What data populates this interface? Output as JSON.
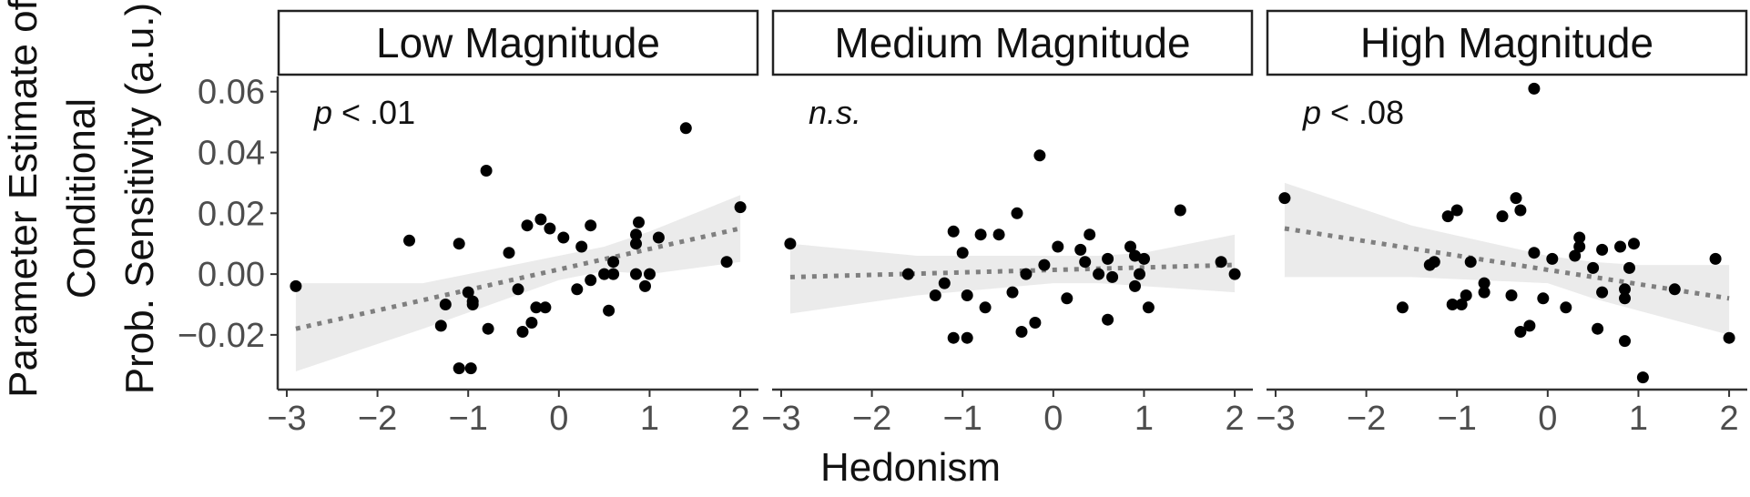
{
  "chart_data": {
    "type": "scatter",
    "xlabel": "Hedonism",
    "ylabel_lines": [
      "Parameter Estimate of",
      "Conditional",
      "Prob. Sensitivity (a.u.)"
    ],
    "xlim": [
      -3.1,
      2.2
    ],
    "ylim": [
      -0.038,
      0.065
    ],
    "x_ticks": [
      -3,
      -2,
      -1,
      0,
      1,
      2
    ],
    "x_tick_labels": [
      "−3",
      "−2",
      "−1",
      "0",
      "1",
      "2"
    ],
    "y_ticks": [
      -0.02,
      0.0,
      0.02,
      0.04,
      0.06
    ],
    "y_tick_labels": [
      "−0.02",
      "0.00",
      "0.02",
      "0.04",
      "0.06"
    ],
    "colors": {
      "point": "#000000",
      "fit_line": "#7f7f7f",
      "ribbon": "#ebebeb",
      "axis": "#333333"
    },
    "panels": [
      {
        "title": "Low Magnitude",
        "annotation_italic": "p",
        "annotation_rest": " < .01",
        "fit": {
          "x": [
            -2.9,
            2.0
          ],
          "y": [
            -0.018,
            0.015
          ]
        },
        "ribbon": {
          "x": [
            -2.9,
            -1.5,
            0.0,
            0.5,
            1.0,
            2.0
          ],
          "lower": [
            -0.032,
            -0.018,
            -0.002,
            0.001,
            0.0,
            0.004
          ],
          "upper": [
            -0.003,
            -0.003,
            0.006,
            0.009,
            0.014,
            0.026
          ]
        },
        "points": [
          {
            "x": -2.9,
            "y": -0.004
          },
          {
            "x": -1.65,
            "y": 0.011
          },
          {
            "x": -1.3,
            "y": -0.017
          },
          {
            "x": -1.25,
            "y": -0.01
          },
          {
            "x": -1.1,
            "y": 0.01
          },
          {
            "x": -1.1,
            "y": -0.031
          },
          {
            "x": -1.0,
            "y": -0.006
          },
          {
            "x": -0.97,
            "y": -0.031
          },
          {
            "x": -0.95,
            "y": -0.009
          },
          {
            "x": -0.95,
            "y": -0.01
          },
          {
            "x": -0.8,
            "y": 0.034
          },
          {
            "x": -0.78,
            "y": -0.018
          },
          {
            "x": -0.55,
            "y": 0.007
          },
          {
            "x": -0.45,
            "y": -0.005
          },
          {
            "x": -0.4,
            "y": -0.019
          },
          {
            "x": -0.35,
            "y": 0.016
          },
          {
            "x": -0.3,
            "y": -0.016
          },
          {
            "x": -0.25,
            "y": -0.011
          },
          {
            "x": -0.2,
            "y": 0.018
          },
          {
            "x": -0.15,
            "y": -0.011
          },
          {
            "x": -0.1,
            "y": 0.015
          },
          {
            "x": 0.05,
            "y": 0.012
          },
          {
            "x": 0.2,
            "y": -0.005
          },
          {
            "x": 0.25,
            "y": 0.009
          },
          {
            "x": 0.35,
            "y": 0.016
          },
          {
            "x": 0.35,
            "y": -0.002
          },
          {
            "x": 0.5,
            "y": 0.0
          },
          {
            "x": 0.55,
            "y": -0.012
          },
          {
            "x": 0.6,
            "y": 0.004
          },
          {
            "x": 0.6,
            "y": 0.0
          },
          {
            "x": 0.85,
            "y": 0.013
          },
          {
            "x": 0.85,
            "y": 0.01
          },
          {
            "x": 0.85,
            "y": 0.0
          },
          {
            "x": 0.88,
            "y": 0.017
          },
          {
            "x": 0.95,
            "y": -0.004
          },
          {
            "x": 1.0,
            "y": 0.0
          },
          {
            "x": 1.1,
            "y": 0.012
          },
          {
            "x": 1.4,
            "y": 0.048
          },
          {
            "x": 1.85,
            "y": 0.004
          },
          {
            "x": 2.0,
            "y": 0.022
          }
        ]
      },
      {
        "title": "Medium Magnitude",
        "annotation_italic": "n.s.",
        "annotation_rest": "",
        "fit": {
          "x": [
            -2.9,
            2.0
          ],
          "y": [
            -0.001,
            0.003
          ]
        },
        "ribbon": {
          "x": [
            -2.9,
            -1.5,
            0.0,
            0.5,
            1.0,
            2.0
          ],
          "lower": [
            -0.013,
            -0.007,
            -0.003,
            -0.003,
            -0.004,
            -0.006
          ],
          "upper": [
            0.01,
            0.006,
            0.006,
            0.006,
            0.007,
            0.013
          ]
        },
        "points": [
          {
            "x": -2.9,
            "y": 0.01
          },
          {
            "x": -1.6,
            "y": 0.0
          },
          {
            "x": -1.3,
            "y": -0.007
          },
          {
            "x": -1.2,
            "y": -0.003
          },
          {
            "x": -1.1,
            "y": 0.014
          },
          {
            "x": -1.1,
            "y": -0.021
          },
          {
            "x": -1.0,
            "y": 0.007
          },
          {
            "x": -0.95,
            "y": -0.021
          },
          {
            "x": -0.95,
            "y": -0.007
          },
          {
            "x": -0.8,
            "y": 0.013
          },
          {
            "x": -0.75,
            "y": -0.011
          },
          {
            "x": -0.6,
            "y": 0.013
          },
          {
            "x": -0.45,
            "y": -0.006
          },
          {
            "x": -0.4,
            "y": 0.02
          },
          {
            "x": -0.35,
            "y": -0.019
          },
          {
            "x": -0.3,
            "y": 0.0
          },
          {
            "x": -0.2,
            "y": -0.016
          },
          {
            "x": -0.15,
            "y": 0.039
          },
          {
            "x": -0.1,
            "y": 0.003
          },
          {
            "x": 0.05,
            "y": 0.009
          },
          {
            "x": 0.15,
            "y": -0.008
          },
          {
            "x": 0.3,
            "y": 0.008
          },
          {
            "x": 0.35,
            "y": 0.004
          },
          {
            "x": 0.4,
            "y": 0.013
          },
          {
            "x": 0.5,
            "y": 0.0
          },
          {
            "x": 0.6,
            "y": 0.005
          },
          {
            "x": 0.6,
            "y": -0.015
          },
          {
            "x": 0.65,
            "y": -0.001
          },
          {
            "x": 0.85,
            "y": 0.009
          },
          {
            "x": 0.9,
            "y": 0.006
          },
          {
            "x": 0.9,
            "y": -0.004
          },
          {
            "x": 0.95,
            "y": 0.0
          },
          {
            "x": 1.0,
            "y": 0.005
          },
          {
            "x": 1.05,
            "y": -0.011
          },
          {
            "x": 1.4,
            "y": 0.021
          },
          {
            "x": 1.85,
            "y": 0.004
          },
          {
            "x": 2.0,
            "y": 0.0
          }
        ]
      },
      {
        "title": "High Magnitude",
        "annotation_italic": "p",
        "annotation_rest": " < .08",
        "fit": {
          "x": [
            -2.9,
            2.0
          ],
          "y": [
            0.015,
            -0.008
          ]
        },
        "ribbon": {
          "x": [
            -2.9,
            -1.5,
            0.0,
            0.5,
            1.0,
            2.0
          ],
          "lower": [
            -0.001,
            -0.001,
            -0.003,
            -0.008,
            -0.012,
            -0.02
          ],
          "upper": [
            0.03,
            0.016,
            0.006,
            0.004,
            0.003,
            0.003
          ]
        },
        "points": [
          {
            "x": -2.9,
            "y": 0.025
          },
          {
            "x": -1.6,
            "y": -0.011
          },
          {
            "x": -1.3,
            "y": 0.003
          },
          {
            "x": -1.25,
            "y": 0.004
          },
          {
            "x": -1.1,
            "y": 0.019
          },
          {
            "x": -1.05,
            "y": -0.01
          },
          {
            "x": -1.0,
            "y": 0.021
          },
          {
            "x": -0.95,
            "y": -0.01
          },
          {
            "x": -0.9,
            "y": -0.007
          },
          {
            "x": -0.85,
            "y": 0.004
          },
          {
            "x": -0.7,
            "y": -0.003
          },
          {
            "x": -0.7,
            "y": -0.006
          },
          {
            "x": -0.5,
            "y": 0.019
          },
          {
            "x": -0.4,
            "y": -0.007
          },
          {
            "x": -0.35,
            "y": 0.025
          },
          {
            "x": -0.3,
            "y": 0.021
          },
          {
            "x": -0.3,
            "y": -0.019
          },
          {
            "x": -0.2,
            "y": -0.017
          },
          {
            "x": -0.15,
            "y": 0.061
          },
          {
            "x": -0.15,
            "y": 0.007
          },
          {
            "x": -0.05,
            "y": -0.008
          },
          {
            "x": 0.05,
            "y": 0.005
          },
          {
            "x": 0.2,
            "y": -0.011
          },
          {
            "x": 0.3,
            "y": 0.006
          },
          {
            "x": 0.35,
            "y": 0.012
          },
          {
            "x": 0.35,
            "y": 0.009
          },
          {
            "x": 0.5,
            "y": 0.002
          },
          {
            "x": 0.55,
            "y": -0.018
          },
          {
            "x": 0.6,
            "y": 0.008
          },
          {
            "x": 0.6,
            "y": -0.006
          },
          {
            "x": 0.8,
            "y": 0.009
          },
          {
            "x": 0.85,
            "y": -0.005
          },
          {
            "x": 0.85,
            "y": -0.008
          },
          {
            "x": 0.85,
            "y": -0.022
          },
          {
            "x": 0.9,
            "y": 0.002
          },
          {
            "x": 0.95,
            "y": 0.01
          },
          {
            "x": 1.05,
            "y": -0.034
          },
          {
            "x": 1.4,
            "y": -0.005
          },
          {
            "x": 1.85,
            "y": 0.005
          },
          {
            "x": 2.0,
            "y": -0.021
          }
        ]
      }
    ]
  }
}
